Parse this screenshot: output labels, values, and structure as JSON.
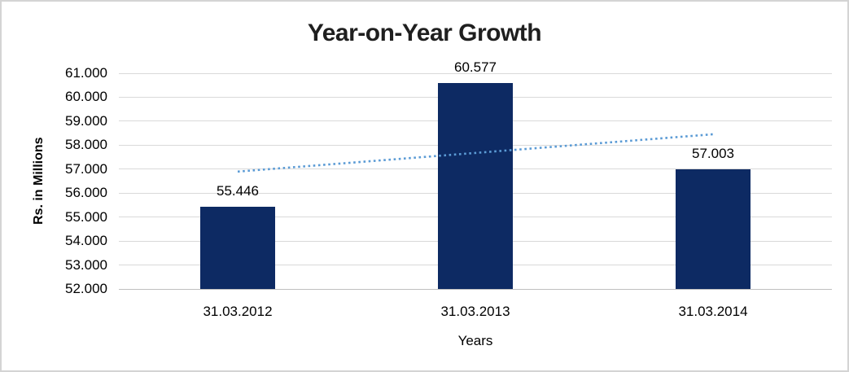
{
  "chart_data": {
    "type": "bar",
    "title": "Year-on-Year Growth",
    "xlabel": "Years",
    "ylabel": "Rs. in Millions",
    "categories": [
      "31.03.2012",
      "31.03.2013",
      "31.03.2014"
    ],
    "values": [
      55.446,
      60.577,
      57.003
    ],
    "data_labels": [
      "55.446",
      "60.577",
      "57.003"
    ],
    "y_ticks": [
      "52.000",
      "53.000",
      "54.000",
      "55.000",
      "56.000",
      "57.000",
      "58.000",
      "59.000",
      "60.000",
      "61.000"
    ],
    "y_tick_values": [
      52,
      53,
      54,
      55,
      56,
      57,
      58,
      59,
      60,
      61
    ],
    "ylim": [
      52,
      61
    ],
    "grid": "horizontal",
    "legend": "none",
    "colors": {
      "bar": "#0d2a63",
      "trendline": "#5b9bd5",
      "gridline": "#d9d9d9",
      "frame_border": "#d4d4d4",
      "text": "#000000",
      "title_text": "#1f1f1f"
    },
    "trendline": {
      "type": "linear",
      "style": "dotted",
      "start_value": 56.897,
      "end_value": 58.455
    }
  }
}
